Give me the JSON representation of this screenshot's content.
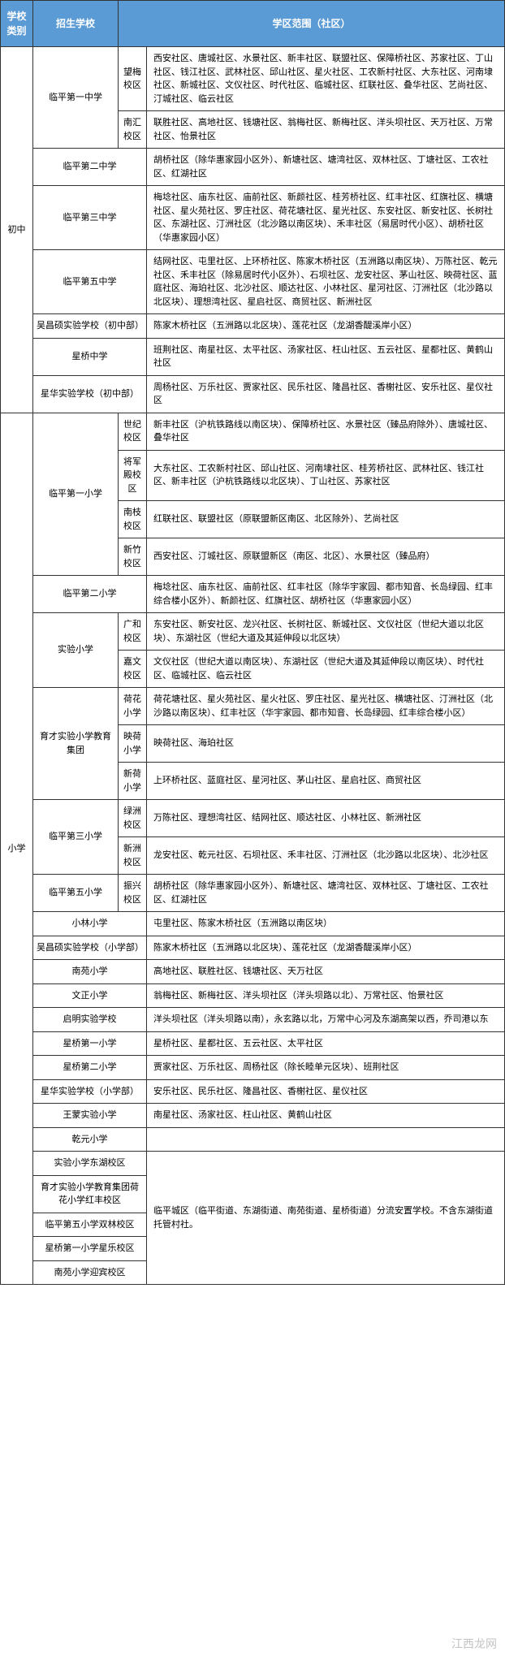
{
  "headers": {
    "category": "学校类别",
    "school": "招生学校",
    "area": "学区范围（社区）"
  },
  "categories": {
    "middle": "初中",
    "primary": "小学"
  },
  "middle_rows": [
    {
      "school": "临平第一中学",
      "campus": "望梅校区",
      "area": "西安社区、唐城社区、水景社区、新丰社区、联盟社区、保障桥社区、苏家社区、丁山社区、钱江社区、武林社区、邱山社区、星火社区、工农新村社区、大东社区、河南埭社区、新城社区、文仪社区、时代社区、临城社区、红联社区、叠华社区、艺尚社区、汀城社区、临云社区"
    },
    {
      "campus": "南汇校区",
      "area": "联胜社区、高地社区、钱塘社区、翁梅社区、新梅社区、洋头坝社区、天万社区、万常社区、怡景社区"
    },
    {
      "school": "临平第二中学",
      "area": "胡桥社区（除华惠家园小区外）、新塘社区、塘湾社区、双林社区、丁塘社区、工农社区、红湖社区"
    },
    {
      "school": "临平第三中学",
      "area": "梅埝社区、庙东社区、庙前社区、新颜社区、桂芳桥社区、红丰社区、红旗社区、横塘社区、星火苑社区、罗庄社区、荷花塘社区、星光社区、东安社区、新安社区、长树社区、东湖社区、汀洲社区（北沙路以南区块）、禾丰社区（易居时代小区）、胡桥社区（华惠家园小区）"
    },
    {
      "school": "临平第五中学",
      "area": "结网社区、屯里社区、上环桥社区、陈家木桥社区（五洲路以南区块）、万陈社区、乾元社区、禾丰社区（除易居时代小区外）、石坝社区、龙安社区、茅山社区、映荷社区、蓝庭社区、海珀社区、北沙社区、顺达社区、小林社区、星河社区、汀洲社区（北沙路以北区块）、理想湾社区、星启社区、商贸社区、新洲社区"
    },
    {
      "school": "吴昌硕实验学校（初中部）",
      "area": "陈家木桥社区（五洲路以北区块）、莲花社区（龙湖香醍溪岸小区）"
    },
    {
      "school": "星桥中学",
      "area": "班荆社区、南星社区、太平社区、汤家社区、枉山社区、五云社区、星都社区、黄鹤山社区"
    },
    {
      "school": "星华实验学校（初中部）",
      "area": "周杨社区、万乐社区、贾家社区、民乐社区、隆昌社区、香榭社区、安乐社区、星仪社区"
    }
  ],
  "primary_rows": [
    {
      "school": "临平第一小学",
      "campus": "世纪校区",
      "area": "新丰社区（沪杭铁路线以南区块）、保障桥社区、水景社区（臻品府除外）、唐城社区、叠华社区"
    },
    {
      "campus": "将军殿校区",
      "area": "大东社区、工农新村社区、邱山社区、河南埭社区、桂芳桥社区、武林社区、钱江社区、新丰社区（沪杭铁路线以北区块）、丁山社区、苏家社区"
    },
    {
      "campus": "南枝校区",
      "area": "红联社区、联盟社区（原联盟新区南区、北区除外）、艺尚社区"
    },
    {
      "campus": "新竹校区",
      "area": "西安社区、汀城社区、原联盟新区（南区、北区）、水景社区（臻品府）"
    },
    {
      "school": "临平第二小学",
      "area": "梅埝社区、庙东社区、庙前社区、红丰社区（除华宇家园、都市知音、长岛绿园、红丰综合楼小区外）、新颜社区、红旗社区、胡桥社区（华惠家园小区）"
    },
    {
      "school": "实验小学",
      "campus": "广和校区",
      "area": "东安社区、新安社区、龙兴社区、长树社区、新城社区、文仪社区（世纪大道以北区块）、东湖社区（世纪大道及其延伸段以北区块）"
    },
    {
      "campus": "嘉文校区",
      "area": "文仪社区（世纪大道以南区块）、东湖社区（世纪大道及其延伸段以南区块）、时代社区、临城社区、临云社区"
    },
    {
      "school": "育才实验小学教育集团",
      "campus": "荷花小学",
      "area": "荷花塘社区、星火苑社区、星火社区、罗庄社区、星光社区、横塘社区、汀洲社区（北沙路以南区块）、红丰社区（华宇家园、都市知音、长岛绿园、红丰综合楼小区）"
    },
    {
      "campus": "映荷小学",
      "area": "映荷社区、海珀社区"
    },
    {
      "campus": "新荷小学",
      "area": "上环桥社区、蓝庭社区、星河社区、茅山社区、星启社区、商贸社区"
    },
    {
      "school": "临平第三小学",
      "campus": "绿洲校区",
      "area": "万陈社区、理想湾社区、结网社区、顺达社区、小林社区、新洲社区"
    },
    {
      "campus": "新洲校区",
      "area": "龙安社区、乾元社区、石坝社区、禾丰社区、汀洲社区（北沙路以北区块）、北沙社区"
    },
    {
      "school": "临平第五小学",
      "campus": "振兴校区",
      "area": "胡桥社区（除华惠家园小区外）、新塘社区、塘湾社区、双林社区、丁塘社区、工农社区、红湖社区"
    },
    {
      "school": "小林小学",
      "area": "屯里社区、陈家木桥社区（五洲路以南区块）"
    },
    {
      "school": "吴昌硕实验学校（小学部）",
      "area": "陈家木桥社区（五洲路以北区块）、莲花社区（龙湖香醍溪岸小区）"
    },
    {
      "school": "南苑小学",
      "area": "高地社区、联胜社区、钱塘社区、天万社区"
    },
    {
      "school": "文正小学",
      "area": "翁梅社区、新梅社区、洋头坝社区（洋头坝路以北）、万常社区、怡景社区"
    },
    {
      "school": "启明实验学校",
      "area": "洋头坝社区（洋头坝路以南），永玄路以北，万常中心河及东湖高架以西，乔司港以东"
    },
    {
      "school": "星桥第一小学",
      "area": "星桥社区、星都社区、五云社区、太平社区"
    },
    {
      "school": "星桥第二小学",
      "area": "贾家社区、万乐社区、周杨社区（除长睦单元区块）、班荆社区"
    },
    {
      "school": "星华实验学校（小学部）",
      "area": "安乐社区、民乐社区、隆昌社区、香榭社区、星仪社区"
    },
    {
      "school": "王蒙实验小学",
      "area": "南星社区、汤家社区、枉山社区、黄鹤山社区"
    },
    {
      "school": "乾元小学",
      "area": ""
    },
    {
      "school": "实验小学东湖校区",
      "area_merge_start": true,
      "area": "临平城区（临平街道、东湖街道、南苑街道、星桥街道）分流安置学校。不含东湖街道托管村社。"
    },
    {
      "school": "育才实验小学教育集团荷花小学红丰校区"
    },
    {
      "school": "临平第五小学双林校区"
    },
    {
      "school": "星桥第一小学星乐校区"
    },
    {
      "school": "南苑小学迎宾校区"
    }
  ],
  "watermark": "江西龙网"
}
